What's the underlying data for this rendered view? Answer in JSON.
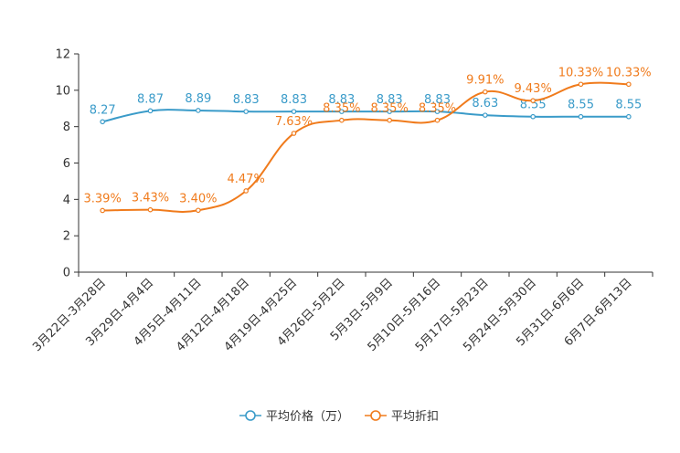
{
  "chart_data": {
    "type": "line",
    "title": "",
    "xlabel": "",
    "ylabel": "",
    "ylim": [
      0,
      12
    ],
    "yticks": [
      0,
      2,
      4,
      6,
      8,
      10,
      12
    ],
    "grid": false,
    "legend_position": "bottom",
    "categories": [
      "3月22日-3月28日",
      "3月29日-4月4日",
      "4月5日-4月11日",
      "4月12日-4月18日",
      "4月19日-4月25日",
      "4月26日-5月2日",
      "5月3日-5月9日",
      "5月10日-5月16日",
      "5月17日-5月23日",
      "5月24日-5月30日",
      "5月31日-6月6日",
      "6月7日-6月13日"
    ],
    "series": [
      {
        "name": "平均价格（万）",
        "color": "#3a9bc9",
        "values": [
          8.27,
          8.87,
          8.89,
          8.83,
          8.83,
          8.83,
          8.83,
          8.83,
          8.63,
          8.55,
          8.55,
          8.55
        ],
        "labels": [
          "8.27",
          "8.87",
          "8.89",
          "8.83",
          "8.83",
          "8.83",
          "8.83",
          "8.83",
          "8.63",
          "8.55",
          "8.55",
          "8.55"
        ]
      },
      {
        "name": "平均折扣",
        "color": "#f07b1c",
        "values": [
          3.39,
          3.43,
          3.4,
          4.47,
          7.63,
          8.35,
          8.35,
          8.35,
          9.91,
          9.43,
          10.33,
          10.33
        ],
        "labels": [
          "3.39%",
          "3.43%",
          "3.40%",
          "4.47%",
          "7.63%",
          "8.35%",
          "8.35%",
          "8.35%",
          "9.91%",
          "9.43%",
          "10.33%",
          "10.33%"
        ]
      }
    ]
  }
}
